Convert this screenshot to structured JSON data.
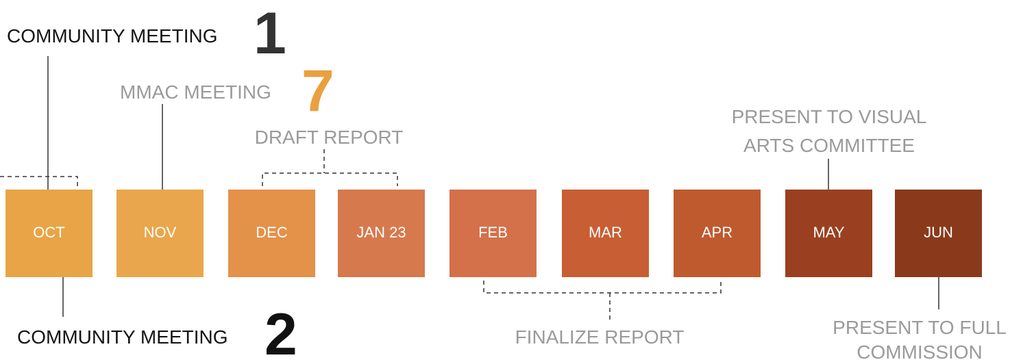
{
  "months": [
    {
      "label": "OCT",
      "color": "#e8a447"
    },
    {
      "label": "NOV",
      "color": "#e9a64c"
    },
    {
      "label": "DEC",
      "color": "#e4914a"
    },
    {
      "label": "JAN 23",
      "color": "#d6794d"
    },
    {
      "label": "FEB",
      "color": "#d4704a"
    },
    {
      "label": "MAR",
      "color": "#c85e33"
    },
    {
      "label": "APR",
      "color": "#bf5a2e"
    },
    {
      "label": "MAY",
      "color": "#9a4020"
    },
    {
      "label": "JUN",
      "color": "#8a3a1b"
    }
  ],
  "events": [
    {
      "label": "COMMUNITY MEETING",
      "number": "1"
    },
    {
      "label": "MMAC MEETING",
      "number": "7"
    },
    {
      "label": "DRAFT REPORT"
    },
    {
      "lines": [
        "PRESENT TO VISUAL",
        "ARTS COMMITTEE"
      ]
    },
    {
      "label": "COMMUNITY MEETING",
      "number": "2"
    },
    {
      "label": "FINALIZE REPORT"
    },
    {
      "lines": [
        "PRESENT TO FULL",
        "COMMISSION"
      ]
    }
  ]
}
